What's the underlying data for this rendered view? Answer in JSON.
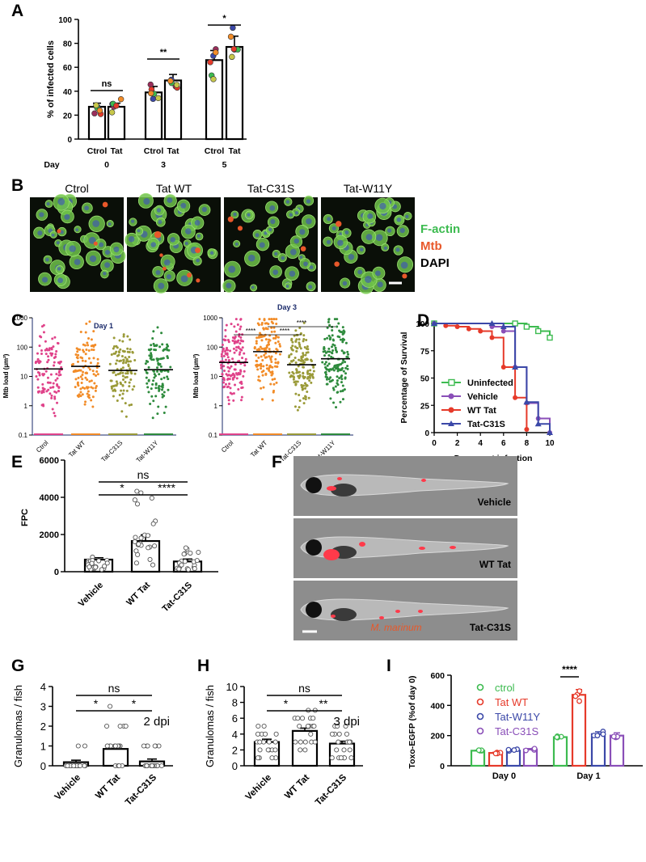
{
  "panels": {
    "A": "A",
    "B": "B",
    "C": "C",
    "D": "D",
    "E": "E",
    "F": "F",
    "G": "G",
    "H": "H",
    "I": "I"
  },
  "colors": {
    "black": "#000000",
    "green": "#3dbb50",
    "red": "#e63a2a",
    "blue": "#3b48a8",
    "purple": "#8a4fb8",
    "pink": "#e0438a",
    "orange": "#f28c28",
    "olive": "#9a9a38",
    "dkgreen": "#2e8b3d"
  },
  "panelB": {
    "labels": [
      "Ctrol",
      "Tat WT",
      "Tat-C31S",
      "Tat-W11Y"
    ],
    "legend": [
      {
        "text": "F-actin",
        "color": "#3dbb50"
      },
      {
        "text": "Mtb",
        "color": "#e8582a"
      },
      {
        "text": "DAPI",
        "color": "#000000"
      }
    ]
  },
  "panelF": {
    "labels": [
      "Vehicle",
      "WT Tat",
      "Tat-C31S"
    ],
    "species": "M. marinum"
  },
  "chart_data": [
    {
      "panel": "A",
      "type": "bar",
      "ylabel": "% of infected cells",
      "ylim": [
        0,
        100
      ],
      "yticks": [
        0,
        20,
        40,
        60,
        80,
        100
      ],
      "xlabel_prefix": "Day",
      "groups": [
        {
          "day": "0",
          "cats": [
            "Ctrol",
            "Tat"
          ],
          "values": [
            27,
            27
          ]
        },
        {
          "day": "3",
          "cats": [
            "Ctrol",
            "Tat"
          ],
          "values": [
            39,
            49
          ]
        },
        {
          "day": "5",
          "cats": [
            "Ctrol",
            "Tat"
          ],
          "values": [
            66,
            77
          ]
        }
      ],
      "significance": [
        "ns",
        "**",
        "*"
      ]
    },
    {
      "panel": "C-left",
      "type": "scatter",
      "title": "Day 1",
      "ylabel": "Mtb load (µm²)",
      "yscale": "log",
      "ylim": [
        0.1,
        1000
      ],
      "yticks": [
        "0.1",
        "1",
        "10",
        "100",
        "1000"
      ],
      "categories": [
        "Ctrol",
        "Tat WT",
        "Tat-C31S",
        "Tat-W11Y"
      ],
      "means": [
        18,
        22,
        16,
        17
      ]
    },
    {
      "panel": "C-right",
      "type": "scatter",
      "title": "Day 3",
      "ylabel": "Mtb load (µm²)",
      "yscale": "log",
      "ylim": [
        0.1,
        1000
      ],
      "yticks": [
        "0.1",
        "1",
        "10",
        "100",
        "1000"
      ],
      "categories": [
        "Ctrol",
        "Tat WT",
        "Tat-C31S",
        "Tat-W11Y"
      ],
      "means": [
        30,
        70,
        25,
        40
      ],
      "significance": [
        "****",
        "****",
        "****"
      ]
    },
    {
      "panel": "D",
      "type": "line",
      "xlabel": "Days post infection",
      "ylabel": "Percentage of Survival",
      "xlim": [
        0,
        10
      ],
      "ylim": [
        0,
        100
      ],
      "xticks": [
        0,
        2,
        4,
        6,
        8,
        10
      ],
      "yticks": [
        0,
        25,
        50,
        75,
        100
      ],
      "series": [
        {
          "name": "Uninfected",
          "color": "#3dbb50",
          "x": [
            0,
            7,
            8,
            9,
            10
          ],
          "y": [
            100,
            100,
            97,
            93,
            87
          ]
        },
        {
          "name": "Vehicle",
          "color": "#8a4fb8",
          "x": [
            0,
            5,
            6,
            7,
            8,
            9,
            10
          ],
          "y": [
            100,
            97,
            93,
            60,
            27,
            13,
            0
          ]
        },
        {
          "name": "WT Tat",
          "color": "#e63a2a",
          "x": [
            1,
            2,
            3,
            4,
            5,
            6,
            7,
            8
          ],
          "y": [
            98,
            97,
            95,
            93,
            87,
            60,
            32,
            3
          ]
        },
        {
          "name": "Tat-C31S",
          "color": "#3b48a8",
          "x": [
            0,
            5,
            6,
            7,
            8,
            9,
            10
          ],
          "y": [
            100,
            100,
            97,
            60,
            28,
            8,
            0
          ]
        }
      ]
    },
    {
      "panel": "E",
      "type": "bar",
      "ylabel": "FPC",
      "ylim": [
        0,
        6000
      ],
      "yticks": [
        0,
        2000,
        4000,
        6000
      ],
      "categories": [
        "Vehicle",
        "WT Tat",
        "Tat-C31S"
      ],
      "values": [
        650,
        1650,
        550
      ],
      "significance": [
        "*",
        "****",
        "ns"
      ]
    },
    {
      "panel": "G",
      "type": "bar",
      "ylabel": "Granulomas / fish",
      "ylim": [
        0,
        4
      ],
      "yticks": [
        0,
        1,
        2,
        3,
        4
      ],
      "categories": [
        "Vehicle",
        "WT Tat",
        "Tat-C31S"
      ],
      "values": [
        0.18,
        0.85,
        0.22
      ],
      "significance": [
        "*",
        "*",
        "ns"
      ],
      "note": "2 dpi"
    },
    {
      "panel": "H",
      "type": "bar",
      "ylabel": "Granulomas / fish",
      "ylim": [
        0,
        10
      ],
      "yticks": [
        0,
        2,
        4,
        6,
        8,
        10
      ],
      "categories": [
        "Vehicle",
        "WT Tat",
        "Tat-C31S"
      ],
      "values": [
        3.0,
        4.4,
        2.8
      ],
      "significance": [
        "*",
        "**",
        "ns"
      ],
      "note": "3 dpi"
    },
    {
      "panel": "I",
      "type": "bar",
      "ylabel": "Toxo-EGFP (%of day 0)",
      "ylim": [
        0,
        600
      ],
      "yticks": [
        0,
        200,
        400,
        600
      ],
      "categories": [
        "Day 0",
        "Day 1"
      ],
      "series": [
        {
          "name": "ctrol",
          "color": "#3dbb50",
          "values": [
            100,
            190
          ]
        },
        {
          "name": "Tat WT",
          "color": "#e63a2a",
          "values": [
            85,
            470
          ]
        },
        {
          "name": "Tat-W11Y",
          "color": "#3b48a8",
          "values": [
            100,
            210
          ]
        },
        {
          "name": "Tat-C31S",
          "color": "#8a4fb8",
          "values": [
            108,
            200
          ]
        }
      ],
      "significance": [
        "****"
      ]
    }
  ]
}
